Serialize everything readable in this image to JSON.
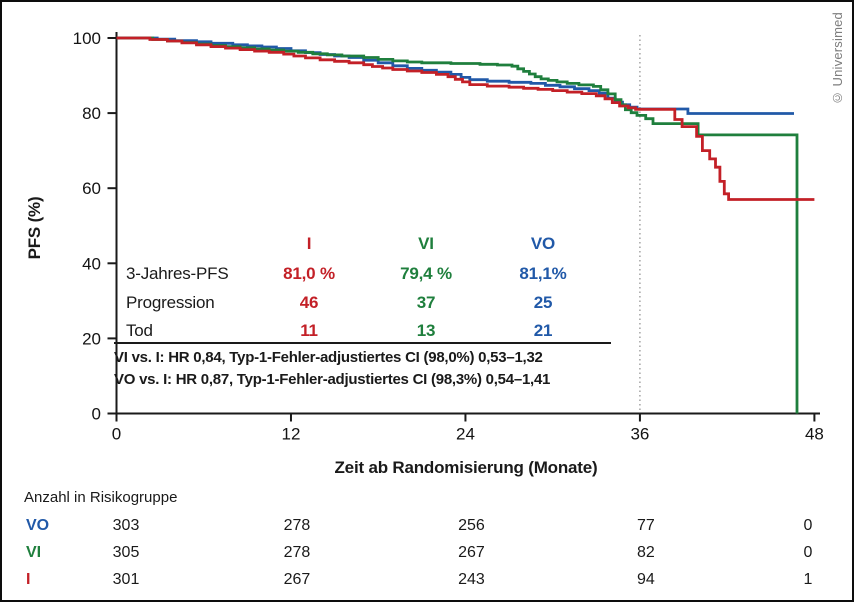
{
  "credit": "© Universimed",
  "colors": {
    "i_red": "#c32027",
    "vi_green": "#1f7f3d",
    "vo_blue": "#2159a8",
    "axis": "#1a1a1a",
    "reference_line": "#8c8c8c",
    "credit_gray": "#7d7d7d"
  },
  "chart_data": {
    "type": "line",
    "subtype": "kaplan-meier-step",
    "title": "",
    "xlabel": "Zeit ab Randomisierung (Monate)",
    "ylabel": "PFS (%)",
    "xlim": [
      0,
      48
    ],
    "ylim": [
      0,
      100
    ],
    "x_ticks": [
      0,
      12,
      24,
      36,
      48
    ],
    "y_ticks": [
      0,
      20,
      40,
      60,
      80,
      100
    ],
    "grid": false,
    "reference_line_x": 36,
    "series": [
      {
        "name": "VO",
        "color": "#2159a8",
        "points": [
          [
            0,
            100
          ],
          [
            2.8,
            99.7
          ],
          [
            4,
            99.3
          ],
          [
            5.5,
            99
          ],
          [
            6.5,
            98.6
          ],
          [
            8,
            98.2
          ],
          [
            9,
            97.9
          ],
          [
            10,
            97.6
          ],
          [
            11,
            97.2
          ],
          [
            12,
            96.6
          ],
          [
            13,
            96.1
          ],
          [
            14,
            95.6
          ],
          [
            15,
            95.2
          ],
          [
            16,
            94.8
          ],
          [
            17,
            94.1
          ],
          [
            18,
            93.4
          ],
          [
            19,
            92.6
          ],
          [
            20,
            91.9
          ],
          [
            21,
            91.4
          ],
          [
            22,
            90.9
          ],
          [
            23,
            90.3
          ],
          [
            23.7,
            89.5
          ],
          [
            24.3,
            88.9
          ],
          [
            25.5,
            88.5
          ],
          [
            27,
            88.2
          ],
          [
            28.5,
            87.9
          ],
          [
            29.5,
            87.4
          ],
          [
            30.5,
            87
          ],
          [
            31.5,
            86.5
          ],
          [
            32.5,
            86
          ],
          [
            33.2,
            85.3
          ],
          [
            33.8,
            84
          ],
          [
            34.3,
            82.9
          ],
          [
            34.8,
            82.2
          ],
          [
            35.3,
            81.6
          ],
          [
            35.8,
            81.1
          ],
          [
            39.3,
            79.9
          ],
          [
            46.6,
            79.9
          ]
        ]
      },
      {
        "name": "VI",
        "color": "#1f7f3d",
        "points": [
          [
            0,
            100
          ],
          [
            2.5,
            99.6
          ],
          [
            3.5,
            99.2
          ],
          [
            4.5,
            98.8
          ],
          [
            5.5,
            98.4
          ],
          [
            6.5,
            98
          ],
          [
            7.5,
            97.7
          ],
          [
            8.5,
            97.4
          ],
          [
            9.5,
            97.1
          ],
          [
            10.5,
            96.8
          ],
          [
            11.5,
            96.5
          ],
          [
            12.5,
            96.2
          ],
          [
            13.5,
            95.8
          ],
          [
            14.5,
            95.5
          ],
          [
            15.5,
            95.2
          ],
          [
            17,
            94.8
          ],
          [
            18,
            94.3
          ],
          [
            19,
            93.9
          ],
          [
            20,
            93.6
          ],
          [
            21,
            93.4
          ],
          [
            23,
            93.2
          ],
          [
            25,
            93
          ],
          [
            26.2,
            92.8
          ],
          [
            27.2,
            92.5
          ],
          [
            27.6,
            91.8
          ],
          [
            28,
            91.1
          ],
          [
            28.4,
            90.4
          ],
          [
            28.8,
            89.7
          ],
          [
            29.2,
            89.1
          ],
          [
            29.7,
            88.7
          ],
          [
            30.3,
            88.3
          ],
          [
            31,
            87.9
          ],
          [
            31.8,
            87.5
          ],
          [
            32.8,
            87.1
          ],
          [
            33.3,
            86.2
          ],
          [
            33.8,
            85.1
          ],
          [
            34.3,
            83.6
          ],
          [
            34.7,
            82.2
          ],
          [
            35,
            80.9
          ],
          [
            35.4,
            80.1
          ],
          [
            35.8,
            79.4
          ],
          [
            36.4,
            78.5
          ],
          [
            36.9,
            77.2
          ],
          [
            40,
            74.2
          ],
          [
            46.8,
            74.2
          ],
          [
            46.8,
            0
          ]
        ]
      },
      {
        "name": "I",
        "color": "#c32027",
        "points": [
          [
            0,
            100
          ],
          [
            2.3,
            99.6
          ],
          [
            3.5,
            99.2
          ],
          [
            4.5,
            98.7
          ],
          [
            5.5,
            98.2
          ],
          [
            6.5,
            97.7
          ],
          [
            7.5,
            97.3
          ],
          [
            8.5,
            96.9
          ],
          [
            9.5,
            96.5
          ],
          [
            10.5,
            96.2
          ],
          [
            11.5,
            95.7
          ],
          [
            12.2,
            95.2
          ],
          [
            13,
            94.7
          ],
          [
            14,
            94.2
          ],
          [
            15,
            93.8
          ],
          [
            16,
            93.4
          ],
          [
            17,
            92.9
          ],
          [
            17.6,
            92.4
          ],
          [
            18.3,
            92
          ],
          [
            19,
            91.6
          ],
          [
            20,
            91.2
          ],
          [
            21,
            90.8
          ],
          [
            22,
            90.3
          ],
          [
            22.8,
            89.7
          ],
          [
            23.3,
            89
          ],
          [
            23.8,
            88.3
          ],
          [
            24.3,
            87.6
          ],
          [
            25.5,
            87.2
          ],
          [
            27,
            86.9
          ],
          [
            28,
            86.6
          ],
          [
            29,
            86.3
          ],
          [
            30,
            86
          ],
          [
            31,
            85.6
          ],
          [
            32,
            85.2
          ],
          [
            33,
            84.6
          ],
          [
            33.6,
            83.8
          ],
          [
            34.1,
            82.8
          ],
          [
            34.6,
            81.9
          ],
          [
            35.2,
            81.4
          ],
          [
            35.7,
            81
          ],
          [
            38.4,
            78.3
          ],
          [
            38.9,
            76.4
          ],
          [
            39.9,
            73.8
          ],
          [
            40.3,
            70
          ],
          [
            40.8,
            67.8
          ],
          [
            41.2,
            65.6
          ],
          [
            41.5,
            61.8
          ],
          [
            41.8,
            58.5
          ],
          [
            42.1,
            57
          ],
          [
            48,
            57
          ]
        ]
      }
    ]
  },
  "stats_table": {
    "columns": [
      {
        "label": "I",
        "color": "#c32027"
      },
      {
        "label": "VI",
        "color": "#1f7f3d"
      },
      {
        "label": "VO",
        "color": "#2159a8"
      }
    ],
    "rows": [
      {
        "label": "3-Jahres-PFS",
        "values": [
          "81,0 %",
          "79,4 %",
          "81,1%"
        ]
      },
      {
        "label": "Progression",
        "values": [
          "46",
          "37",
          "25"
        ]
      },
      {
        "label": "Tod",
        "values": [
          "11",
          "13",
          "21"
        ]
      }
    ]
  },
  "hr_lines": [
    "VI vs. I: HR 0,84, Typ-1-Fehler-adjustiertes CI (98,0%) 0,53–1,32",
    "VO vs. I: HR 0,87, Typ-1-Fehler-adjustiertes CI (98,3%) 0,54–1,41"
  ],
  "risk_table": {
    "title": "Anzahl in Risikogruppe",
    "time_points": [
      0,
      12,
      24,
      36,
      48
    ],
    "rows": [
      {
        "label": "VO",
        "color": "#2159a8",
        "values": [
          "303",
          "278",
          "256",
          "77",
          "0"
        ]
      },
      {
        "label": "VI",
        "color": "#1f7f3d",
        "values": [
          "305",
          "278",
          "267",
          "82",
          "0"
        ]
      },
      {
        "label": "I",
        "color": "#c32027",
        "values": [
          "301",
          "267",
          "243",
          "94",
          "1"
        ]
      }
    ]
  }
}
